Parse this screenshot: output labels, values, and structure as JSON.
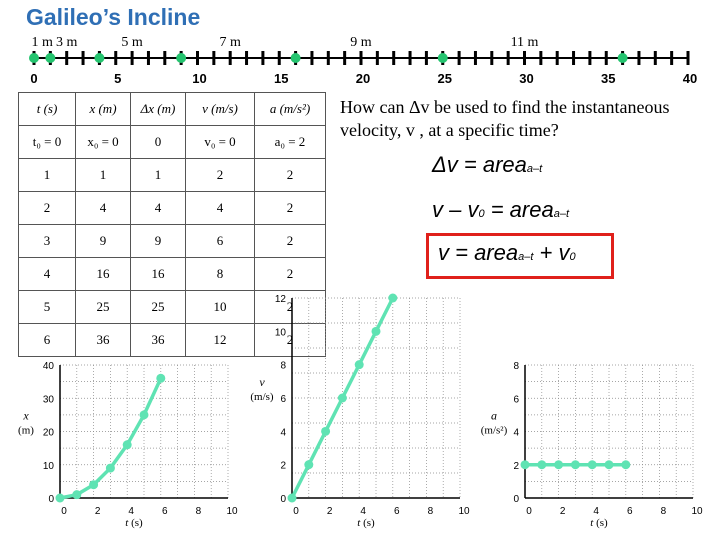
{
  "title": "Galileo’s Incline",
  "ruler": {
    "distance_labels": [
      {
        "text": "1 m",
        "at": 0.5
      },
      {
        "text": "3 m",
        "at": 2
      },
      {
        "text": "5 m",
        "at": 6
      },
      {
        "text": "7 m",
        "at": 12
      },
      {
        "text": "9 m",
        "at": 20
      },
      {
        "text": "11 m",
        "at": 30
      }
    ],
    "ticks": [
      "0",
      "5",
      "10",
      "15",
      "20",
      "25",
      "30",
      "35",
      "40"
    ],
    "tick_values": [
      0,
      5,
      10,
      15,
      20,
      25,
      30,
      35,
      40
    ],
    "dots": [
      0,
      1,
      4,
      9,
      16,
      25,
      36
    ],
    "color": "#24c46f"
  },
  "table": {
    "headers": [
      "t (s)",
      "x (m)",
      "Δx (m)",
      "v (m/s)",
      "a (m/s²)"
    ],
    "initial_row": [
      "t₀ = 0",
      "x₀ = 0",
      "0",
      "v₀ = 0",
      "a₀ = 2"
    ],
    "rows": [
      [
        "1",
        "1",
        "1",
        "2",
        "2"
      ],
      [
        "2",
        "4",
        "4",
        "4",
        "2"
      ],
      [
        "3",
        "9",
        "9",
        "6",
        "2"
      ],
      [
        "4",
        "16",
        "16",
        "8",
        "2"
      ],
      [
        "5",
        "25",
        "25",
        "10",
        "2"
      ],
      [
        "6",
        "36",
        "36",
        "12",
        "2"
      ]
    ]
  },
  "question": "How can Δv be used to find the instantaneous velocity, v , at a specific time?",
  "equations": {
    "eq1_main": "Δv = area",
    "eq1_sub": "a–t",
    "eq2_main": "v – v",
    "eq2_sub0": "0",
    "eq2_rest": " = area",
    "eq2_sub": "a–t",
    "eq3_main": "v = area",
    "eq3_sub": "a–t",
    "eq3_rest": " + v",
    "eq3_sub0": "0"
  },
  "accent_color": "#5fe3b3",
  "highlight_color": "#e0201b",
  "chart_data": [
    {
      "type": "line",
      "x": [
        0,
        1,
        2,
        3,
        4,
        5,
        6
      ],
      "y": [
        0,
        1,
        4,
        9,
        16,
        25,
        36
      ],
      "xlabel": "t (s)",
      "ylabel": "x (m)",
      "xlim": [
        0,
        10
      ],
      "ylim": [
        0,
        40
      ],
      "xticks": [
        0,
        2,
        4,
        6,
        8,
        10
      ],
      "yticks": [
        0,
        10,
        20,
        30,
        40
      ],
      "grid": true
    },
    {
      "type": "line",
      "x": [
        0,
        1,
        2,
        3,
        4,
        5,
        6
      ],
      "y": [
        0,
        2,
        4,
        6,
        8,
        10,
        12
      ],
      "xlabel": "t (s)",
      "ylabel": "v (m/s)",
      "xlim": [
        0,
        10
      ],
      "ylim": [
        0,
        12
      ],
      "xticks": [
        0,
        2,
        4,
        6,
        8,
        10
      ],
      "yticks": [
        0,
        2,
        4,
        6,
        8,
        10,
        12
      ],
      "grid": true
    },
    {
      "type": "line",
      "x": [
        0,
        1,
        2,
        3,
        4,
        5,
        6
      ],
      "y": [
        2,
        2,
        2,
        2,
        2,
        2,
        2
      ],
      "xlabel": "t (s)",
      "ylabel": "a (m/s²)",
      "xlim": [
        0,
        10
      ],
      "ylim": [
        0,
        8
      ],
      "xticks": [
        0,
        2,
        4,
        6,
        8,
        10
      ],
      "yticks": [
        0,
        2,
        4,
        6,
        8
      ],
      "grid": true
    }
  ]
}
